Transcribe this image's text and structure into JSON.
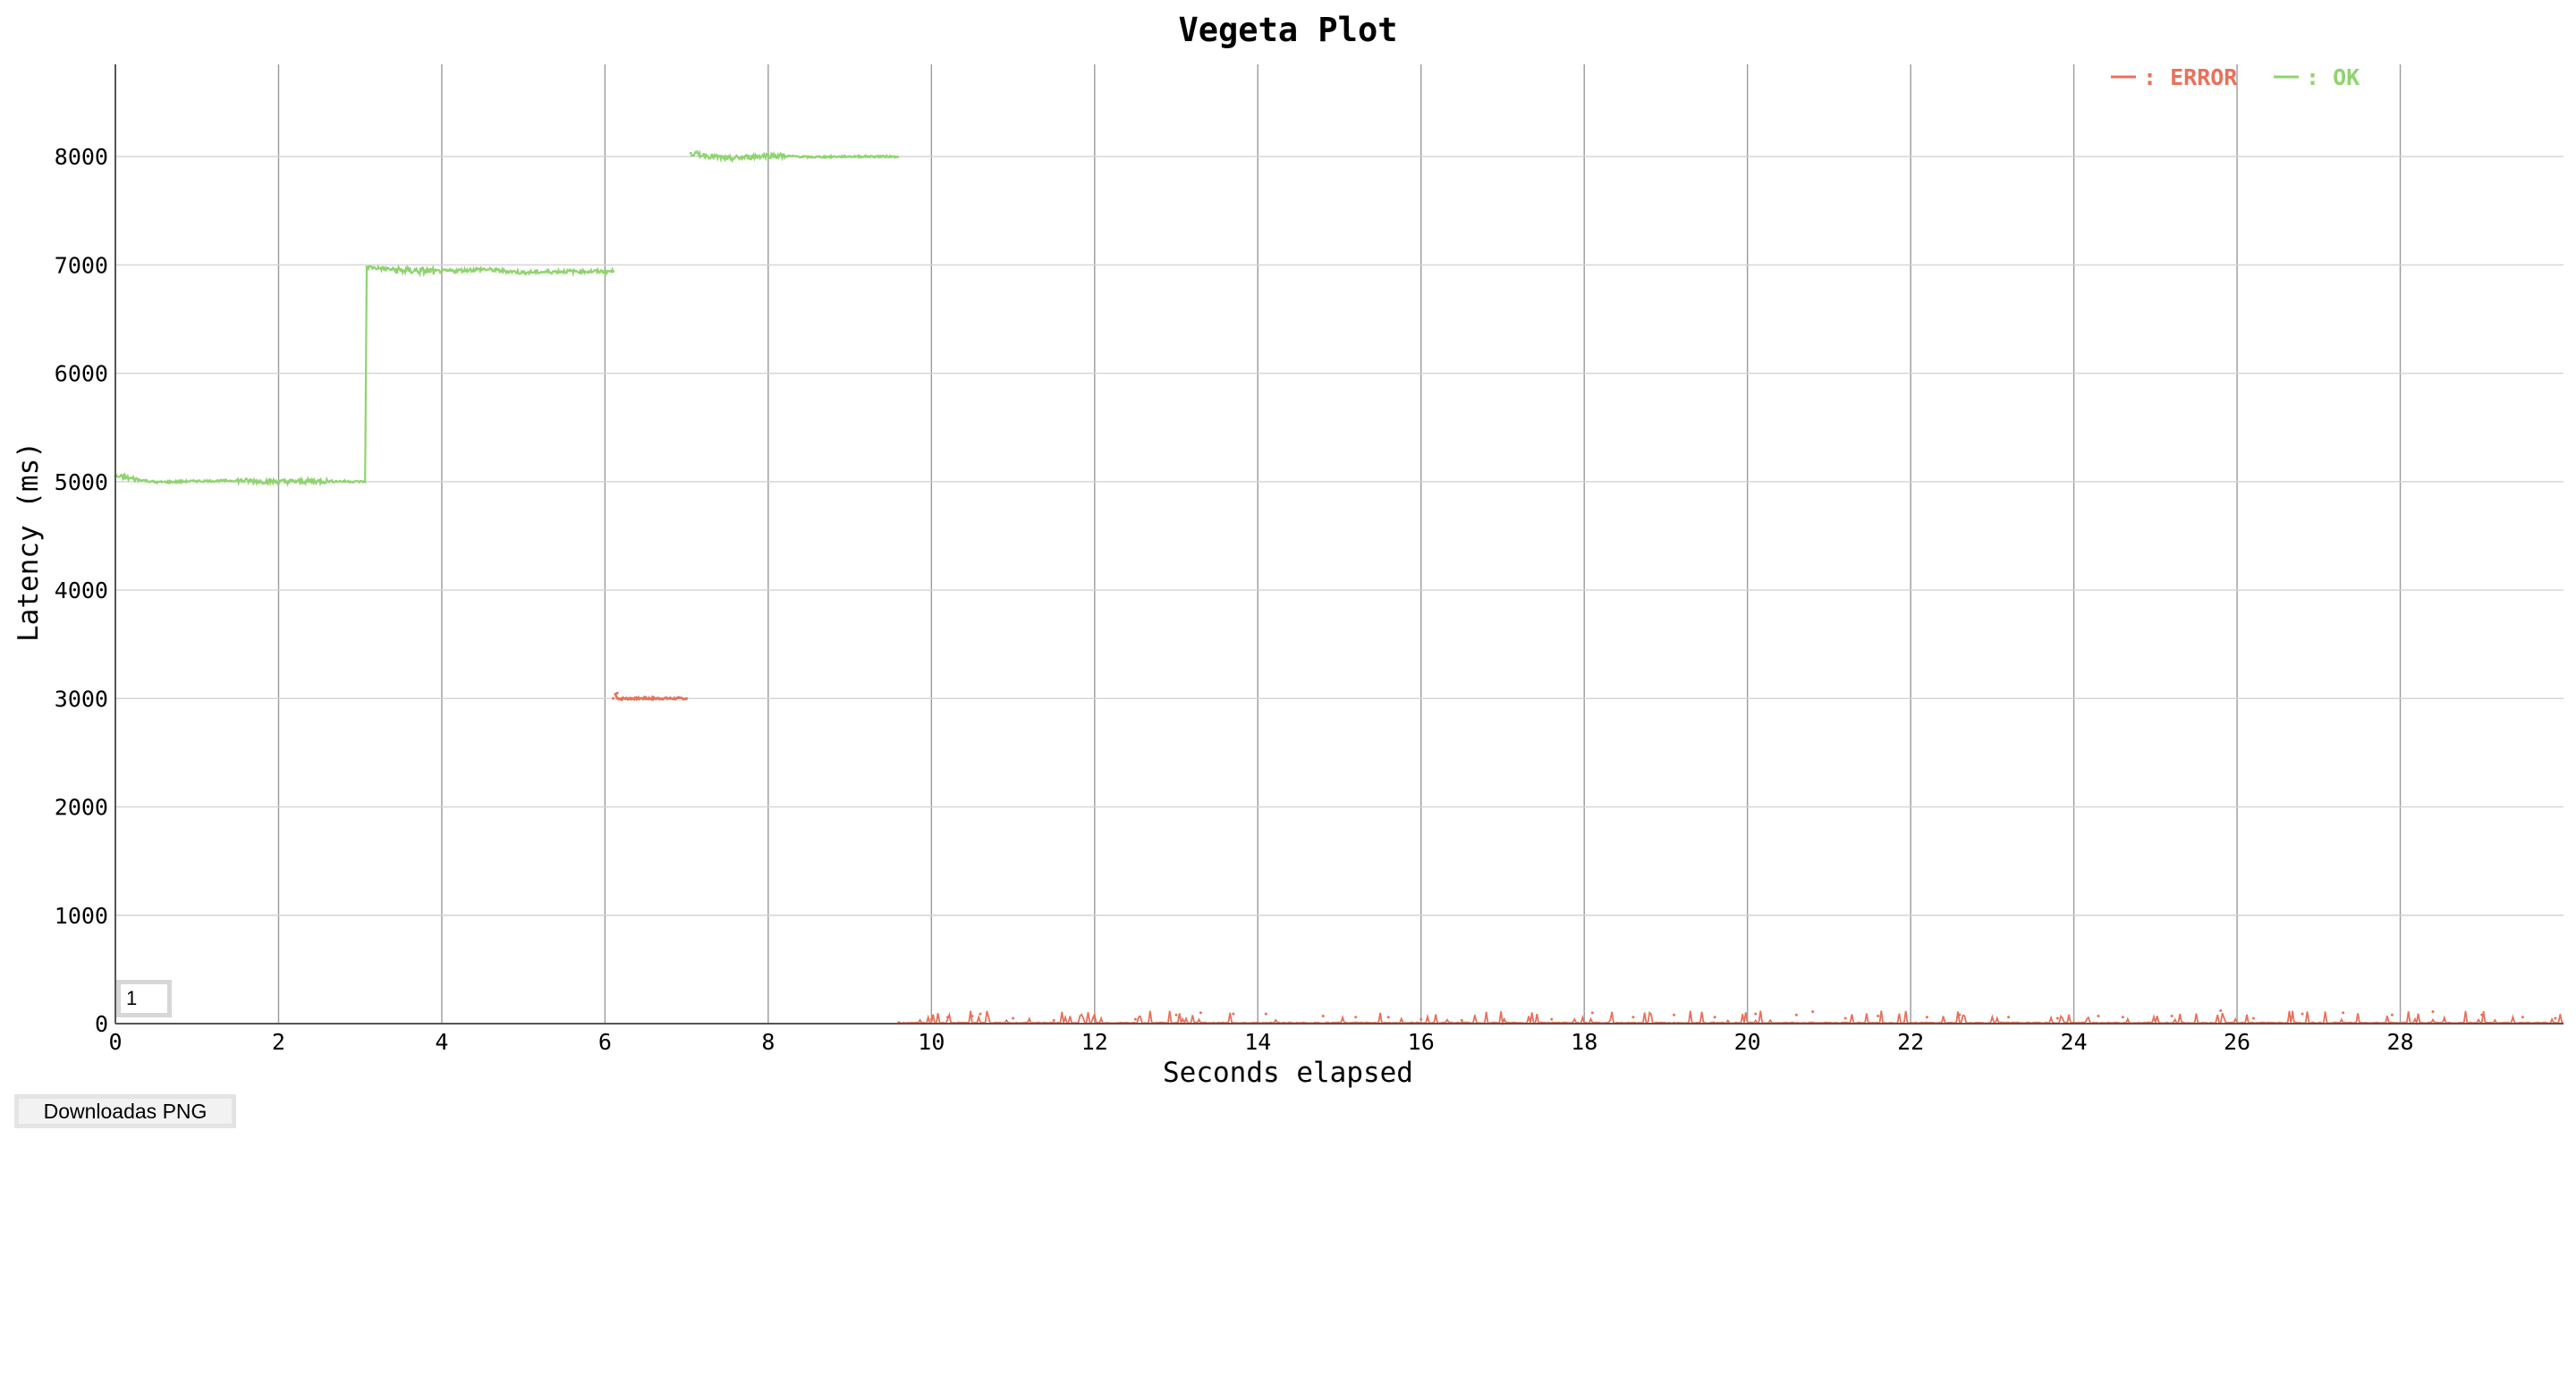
{
  "chart_data": {
    "type": "line",
    "title": "Vegeta Plot",
    "xlabel": "Seconds elapsed",
    "ylabel": "Latency (ms)",
    "xlim": [
      0,
      30
    ],
    "ylim": [
      0,
      8850
    ],
    "x_ticks": [
      "0",
      "2",
      "4",
      "6",
      "8",
      "10",
      "12",
      "14",
      "16",
      "18",
      "20",
      "22",
      "24",
      "26",
      "28"
    ],
    "y_ticks": [
      "0",
      "1000",
      "2000",
      "3000",
      "4000",
      "5000",
      "6000",
      "7000",
      "8000"
    ],
    "x_tick_values": [
      0,
      2,
      4,
      6,
      8,
      10,
      12,
      14,
      16,
      18,
      20,
      22,
      24,
      26,
      28
    ],
    "y_tick_values": [
      0,
      1000,
      2000,
      3000,
      4000,
      5000,
      6000,
      7000,
      8000
    ],
    "grid": true,
    "legend_position": "top-right",
    "series": [
      {
        "name": "ERROR",
        "color": "#e8715a",
        "x": [
          6.1,
          6.15,
          6.2,
          6.3,
          6.5,
          6.7,
          6.9,
          7.0,
          9.6,
          10.0,
          10.2,
          10.5,
          10.6,
          11.0,
          11.5,
          12.0,
          12.5,
          13.0,
          13.3,
          13.7,
          14.1,
          14.8,
          15.2,
          15.6,
          16.0,
          16.5,
          17.0,
          17.6,
          18.1,
          18.6,
          19.1,
          19.6,
          20.1,
          20.6,
          20.8,
          21.2,
          21.6,
          22.2,
          22.6,
          23.2,
          23.8,
          24.3,
          24.6,
          25.2,
          25.8,
          26.2,
          26.8,
          27.3,
          27.9,
          28.4,
          29.0,
          29.5,
          29.9
        ],
        "y": [
          3000,
          3050,
          2990,
          3000,
          3010,
          2995,
          3005,
          3000,
          10,
          40,
          60,
          70,
          90,
          50,
          30,
          50,
          40,
          80,
          100,
          90,
          90,
          70,
          60,
          60,
          40,
          30,
          30,
          40,
          100,
          60,
          80,
          60,
          90,
          80,
          110,
          50,
          70,
          60,
          80,
          60,
          50,
          70,
          60,
          70,
          120,
          50,
          90,
          100,
          80,
          110,
          80,
          60,
          50
        ]
      },
      {
        "name": "OK",
        "color": "#8fd46e",
        "x": [
          0.0,
          0.5,
          1.0,
          1.5,
          2.0,
          2.5,
          3.05,
          3.08,
          3.5,
          4.0,
          4.5,
          5.0,
          5.5,
          6.1,
          7.05,
          7.5,
          8.0,
          8.5,
          9.0,
          9.5
        ],
        "y": [
          5050,
          4995,
          5005,
          5010,
          5000,
          5005,
          5000,
          6980,
          6950,
          6940,
          6960,
          6930,
          6940,
          6940,
          8030,
          7980,
          8010,
          7995,
          8000,
          8000
        ]
      }
    ]
  },
  "controls": {
    "download_label": "Downloadas PNG",
    "roll_value": "1"
  }
}
